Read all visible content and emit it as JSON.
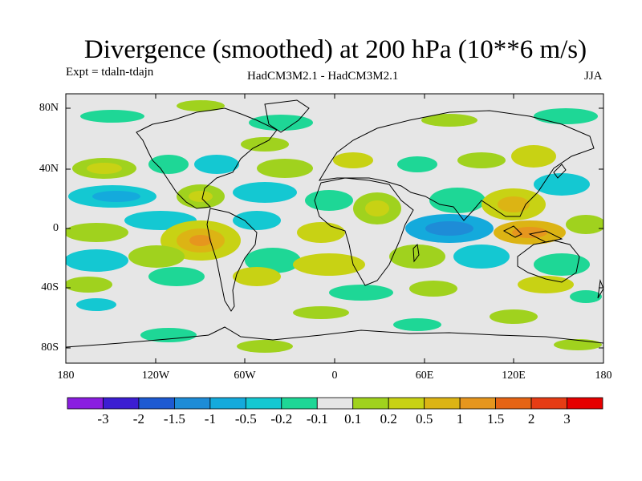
{
  "title": "Divergence (smoothed) at 200 hPa (10**6 m/s)",
  "experiment": "Expt = tdaln-tdajn",
  "models": "HadCM3M2.1 - HadCM3M2.1",
  "season": "JJA",
  "lat_ticks": [
    "80N",
    "40N",
    "0",
    "40S",
    "80S"
  ],
  "lon_ticks": [
    "180",
    "120W",
    "60W",
    "0",
    "60E",
    "120E",
    "180"
  ],
  "colorbar": {
    "labels": [
      "-3",
      "-2",
      "-1.5",
      "-1",
      "-0.5",
      "-0.2",
      "-0.1",
      "0.1",
      "0.2",
      "0.5",
      "1",
      "1.5",
      "2",
      "3"
    ],
    "colors": [
      "#8a1ee0",
      "#3c1ed2",
      "#1e5ad2",
      "#1e8cd7",
      "#14aadc",
      "#14c8d2",
      "#1ed796",
      "#e6e6e6",
      "#a0d21e",
      "#c8d214",
      "#dcb414",
      "#e6961e",
      "#e66414",
      "#e63c14",
      "#e60000"
    ]
  },
  "colors": {
    "background": "#e6e6e6",
    "coast": "#000000"
  }
}
